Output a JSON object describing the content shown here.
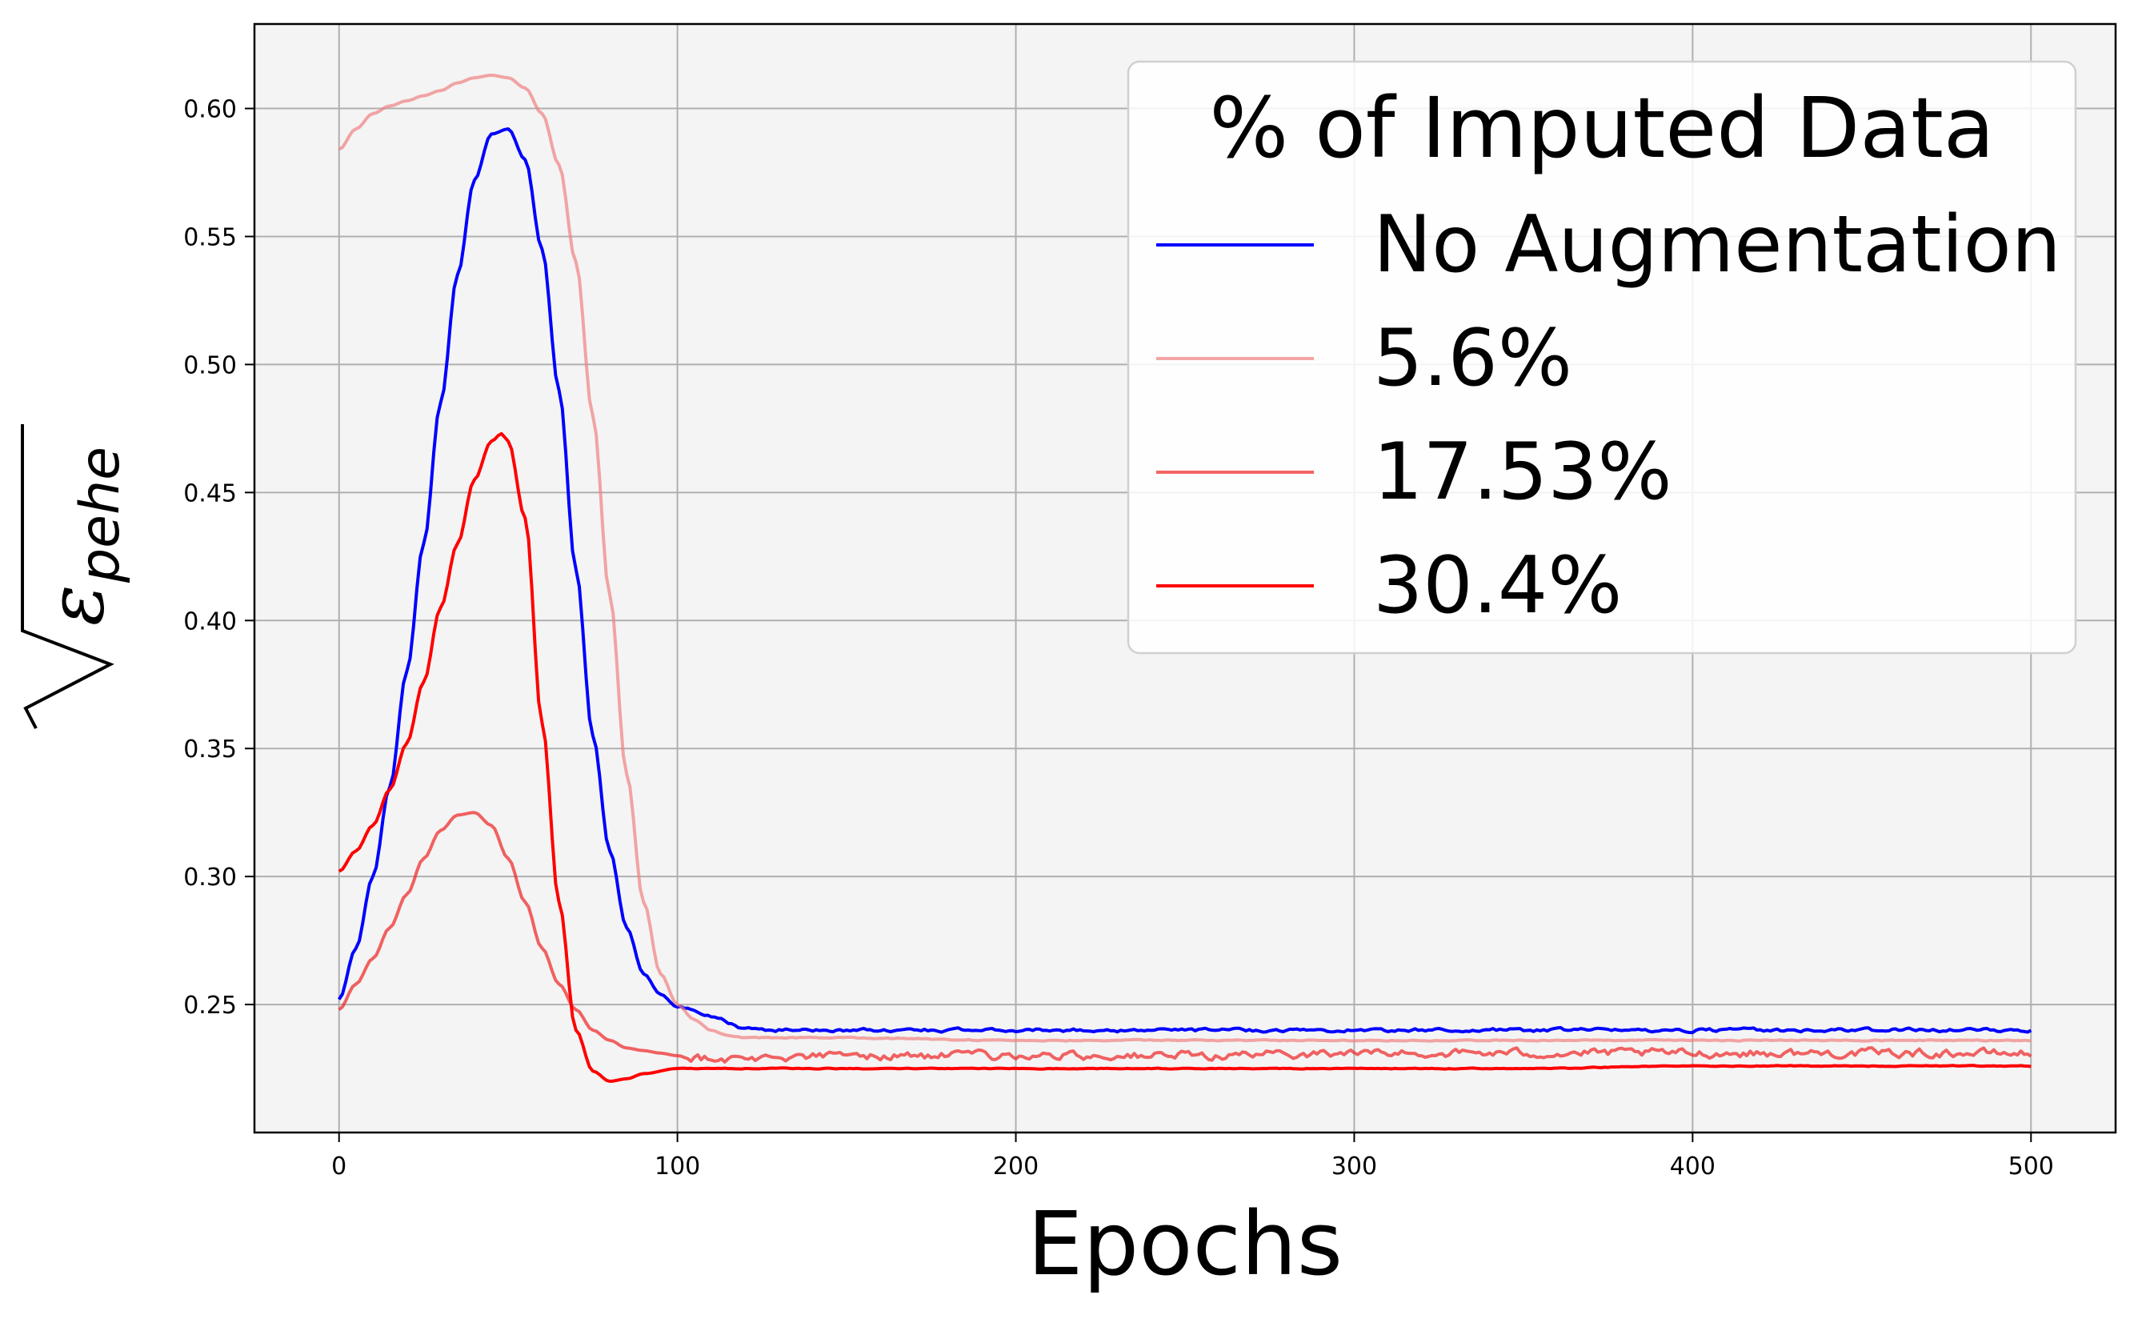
{
  "chart_data": {
    "type": "line",
    "title": "",
    "xlabel": "Epochs",
    "ylabel_symbol": "ε",
    "ylabel_subscript": "pehe",
    "xlim": [
      -25,
      525
    ],
    "ylim": [
      0.2,
      0.633
    ],
    "xticks": [
      0,
      100,
      200,
      300,
      400,
      500
    ],
    "xtick_labels": [
      "0",
      "100",
      "200",
      "300",
      "400",
      "500"
    ],
    "yticks": [
      0.25,
      0.3,
      0.35,
      0.4,
      0.45,
      0.5,
      0.55,
      0.6
    ],
    "ytick_labels": [
      "0.25",
      "0.30",
      "0.35",
      "0.40",
      "0.45",
      "0.50",
      "0.55",
      "0.60"
    ],
    "grid": true,
    "legend": {
      "title": "% of Imputed Data",
      "placement": "top-right"
    },
    "series": [
      {
        "name": "No Augmentation",
        "color": "#0000ff",
        "opacity": 1.0,
        "noise": 0.0012,
        "x": [
          0,
          5,
          10,
          15,
          20,
          25,
          30,
          35,
          40,
          45,
          50,
          55,
          60,
          65,
          70,
          75,
          80,
          85,
          90,
          95,
          100,
          110,
          120,
          130,
          150,
          200,
          250,
          300,
          350,
          400,
          450,
          500
        ],
        "values": [
          0.252,
          0.272,
          0.3,
          0.335,
          0.38,
          0.43,
          0.485,
          0.535,
          0.572,
          0.59,
          0.592,
          0.58,
          0.545,
          0.49,
          0.42,
          0.355,
          0.31,
          0.28,
          0.262,
          0.254,
          0.249,
          0.245,
          0.241,
          0.24,
          0.24,
          0.24,
          0.24,
          0.24,
          0.24,
          0.24,
          0.24,
          0.24
        ]
      },
      {
        "name": "5.6%",
        "color": "#f08080",
        "opacity": 0.7,
        "noise": 0.0004,
        "x": [
          0,
          5,
          10,
          15,
          20,
          25,
          30,
          35,
          40,
          45,
          50,
          55,
          60,
          65,
          70,
          75,
          80,
          85,
          90,
          95,
          100,
          105,
          110,
          115,
          120,
          150,
          200,
          250,
          300,
          350,
          400,
          450,
          500
        ],
        "values": [
          0.584,
          0.592,
          0.598,
          0.601,
          0.603,
          0.605,
          0.607,
          0.61,
          0.612,
          0.613,
          0.612,
          0.608,
          0.598,
          0.578,
          0.54,
          0.48,
          0.41,
          0.34,
          0.29,
          0.262,
          0.25,
          0.244,
          0.24,
          0.238,
          0.237,
          0.237,
          0.236,
          0.236,
          0.236,
          0.236,
          0.236,
          0.236,
          0.236
        ]
      },
      {
        "name": "17.53%",
        "color": "#ee2222",
        "opacity": 0.7,
        "noise": 0.003,
        "x": [
          0,
          5,
          10,
          15,
          20,
          25,
          30,
          35,
          40,
          45,
          50,
          55,
          60,
          65,
          70,
          75,
          80,
          85,
          90,
          95,
          100,
          110,
          120,
          150,
          200,
          250,
          300,
          350,
          400,
          450,
          500
        ],
        "values": [
          0.248,
          0.258,
          0.268,
          0.28,
          0.293,
          0.307,
          0.318,
          0.324,
          0.325,
          0.32,
          0.307,
          0.29,
          0.272,
          0.258,
          0.248,
          0.24,
          0.236,
          0.233,
          0.232,
          0.231,
          0.23,
          0.229,
          0.229,
          0.23,
          0.23,
          0.23,
          0.231,
          0.231,
          0.231,
          0.231,
          0.231
        ]
      },
      {
        "name": "30.4%",
        "color": "#ff0000",
        "opacity": 1.0,
        "noise": 0.0003,
        "x": [
          0,
          5,
          10,
          15,
          20,
          25,
          30,
          35,
          40,
          45,
          48,
          50,
          55,
          60,
          65,
          70,
          75,
          80,
          85,
          90,
          100,
          120,
          150,
          200,
          250,
          300,
          350,
          400,
          450,
          500
        ],
        "values": [
          0.302,
          0.31,
          0.32,
          0.334,
          0.352,
          0.376,
          0.405,
          0.43,
          0.455,
          0.47,
          0.473,
          0.47,
          0.44,
          0.36,
          0.29,
          0.24,
          0.224,
          0.22,
          0.221,
          0.223,
          0.225,
          0.225,
          0.225,
          0.225,
          0.225,
          0.225,
          0.225,
          0.226,
          0.226,
          0.226
        ]
      }
    ]
  }
}
